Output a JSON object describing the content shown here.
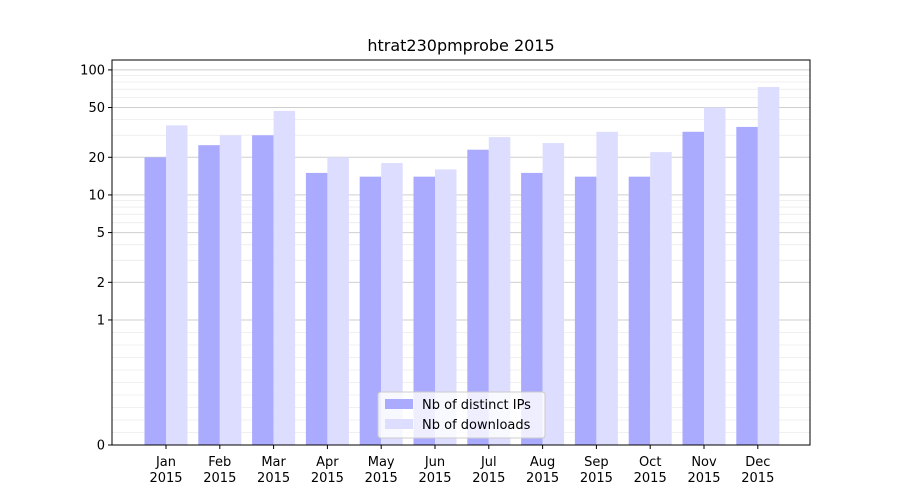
{
  "chart_data": {
    "type": "bar",
    "title": "htrat230pmprobe 2015",
    "xlabel": "",
    "ylabel": "",
    "y_scale": "symlog",
    "ylim": [
      0,
      120
    ],
    "y_ticks": [
      0,
      1,
      2,
      5,
      10,
      20,
      50,
      100
    ],
    "y_tick_labels": [
      "0",
      "1",
      "2",
      "5",
      "10",
      "20",
      "50",
      "100"
    ],
    "grid": true,
    "legend_position": "lower center",
    "categories": [
      "Jan\n2015",
      "Feb\n2015",
      "Mar\n2015",
      "Apr\n2015",
      "May\n2015",
      "Jun\n2015",
      "Jul\n2015",
      "Aug\n2015",
      "Sep\n2015",
      "Oct\n2015",
      "Nov\n2015",
      "Dec\n2015"
    ],
    "series": [
      {
        "name": "Nb of distinct IPs",
        "color": "#aaaaff",
        "values": [
          20,
          25,
          30,
          15,
          14,
          14,
          23,
          15,
          14,
          14,
          32,
          35
        ]
      },
      {
        "name": "Nb of downloads",
        "color": "#ddddff",
        "values": [
          36,
          30,
          47,
          20,
          18,
          16,
          29,
          26,
          32,
          22,
          50,
          73
        ]
      }
    ]
  }
}
